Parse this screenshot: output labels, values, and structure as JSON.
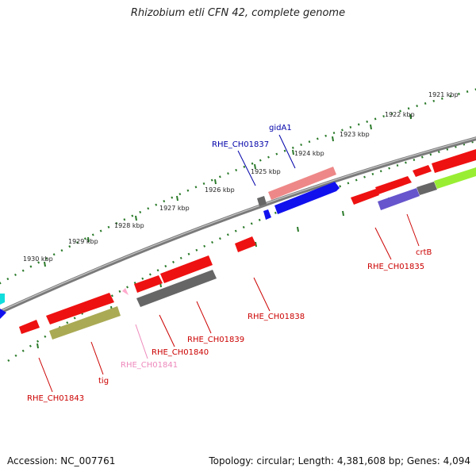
{
  "title": "Rhizobium etli CFN 42, complete genome",
  "footer": {
    "accession": "Accession: NC_007761",
    "stats": "Topology: circular; Length: 4,381,608 bp; Genes: 4,094"
  },
  "kbp_labels": [
    "1921 kbp",
    "1922 kbp",
    "1923 kbp",
    "1924 kbp",
    "1925 kbp",
    "1926 kbp",
    "1927 kbp",
    "1928 kbp",
    "1929 kbp",
    "1930 kbp"
  ],
  "gene_labels": [
    {
      "key": "gidA1",
      "text": "gidA1",
      "color": "#0000aa"
    },
    {
      "key": "RHE_CH01837",
      "text": "RHE_CH01837",
      "color": "#0000aa"
    },
    {
      "key": "RHE_CH01835",
      "text": "RHE_CH01835",
      "color": "#cc0000"
    },
    {
      "key": "crtB",
      "text": "crtB",
      "color": "#cc0000"
    },
    {
      "key": "RHE_CH01838",
      "text": "RHE_CH01838",
      "color": "#cc0000"
    },
    {
      "key": "RHE_CH01839",
      "text": "RHE_CH01839",
      "color": "#cc0000"
    },
    {
      "key": "RHE_CH01840",
      "text": "RHE_CH01840",
      "color": "#cc0000"
    },
    {
      "key": "RHE_CH01841",
      "text": "RHE_CH01841",
      "color": "#ee88bb"
    },
    {
      "key": "tig",
      "text": "tig",
      "color": "#cc0000"
    },
    {
      "key": "RHE_CH01843",
      "text": "RHE_CH01843",
      "color": "#cc0000"
    }
  ],
  "colors": {
    "backbone": "#8a8a8a",
    "tick_marks": "#2a7a2a",
    "gene_red": "#ee1111",
    "gene_blue": "#1111ee",
    "gene_pink": "#ee8888",
    "gene_gray": "#666666",
    "gene_olive": "#aaaa55",
    "gene_purple": "#6655cc",
    "gene_lime": "#99ee33",
    "gene_cyan": "#11dddd",
    "gene_lightpink": "#ffaacc"
  }
}
